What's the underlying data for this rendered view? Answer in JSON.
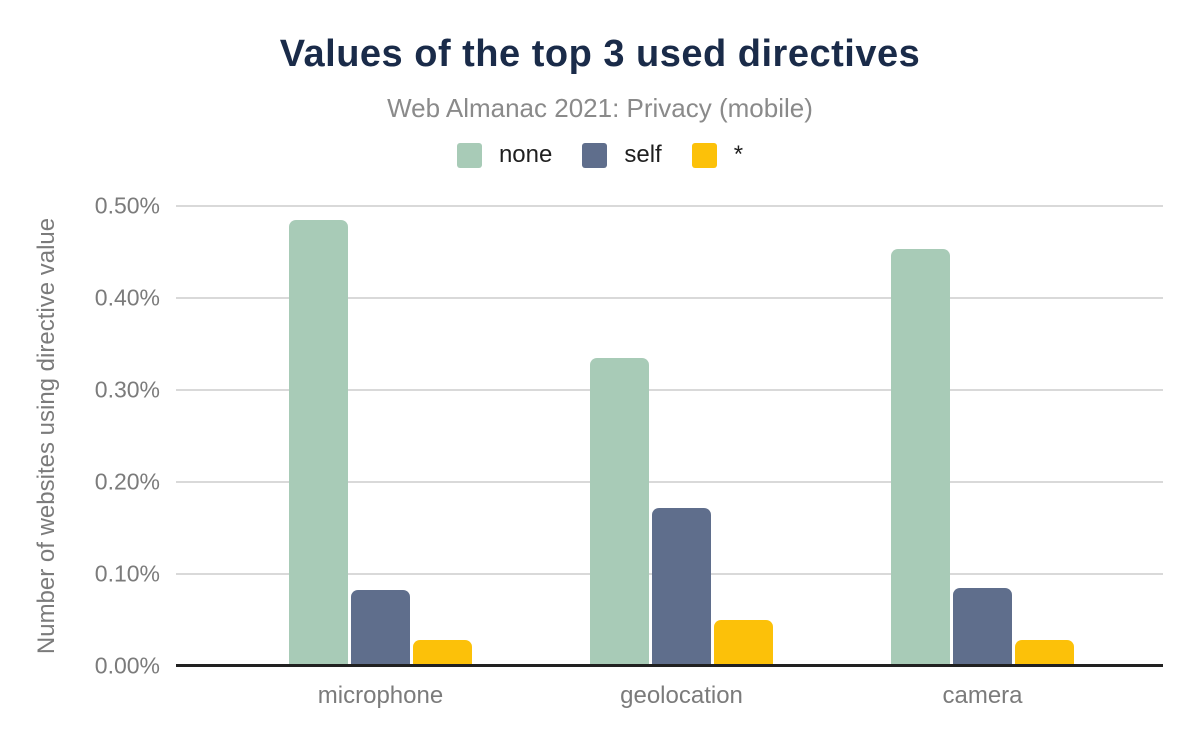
{
  "chart_data": {
    "type": "bar",
    "title": "Values of the top 3 used directives",
    "subtitle": "Web Almanac 2021: Privacy (mobile)",
    "ylabel": "Number of websites using directive value",
    "xlabel": "",
    "categories": [
      "microphone",
      "geolocation",
      "camera"
    ],
    "series": [
      {
        "name": "none",
        "color": "#a8cbb7",
        "values": [
          0.485,
          0.335,
          0.453
        ]
      },
      {
        "name": "self",
        "color": "#5f6e8c",
        "values": [
          0.083,
          0.172,
          0.085
        ]
      },
      {
        "name": "*",
        "color": "#fcc109",
        "values": [
          0.028,
          0.05,
          0.028
        ]
      }
    ],
    "ylim": [
      0,
      0.5
    ],
    "yticks": [
      "0.00%",
      "0.10%",
      "0.20%",
      "0.30%",
      "0.40%",
      "0.50%"
    ],
    "value_unit": "percent",
    "grid": "horizontal",
    "legend_position": "top"
  },
  "colors": {
    "background": "#ffffff",
    "title": "#1a2b49",
    "subtitle": "#8a8a8a",
    "axis_text": "#7b7b7b",
    "gridline": "#d9d9d9",
    "axis_line": "#212121"
  }
}
